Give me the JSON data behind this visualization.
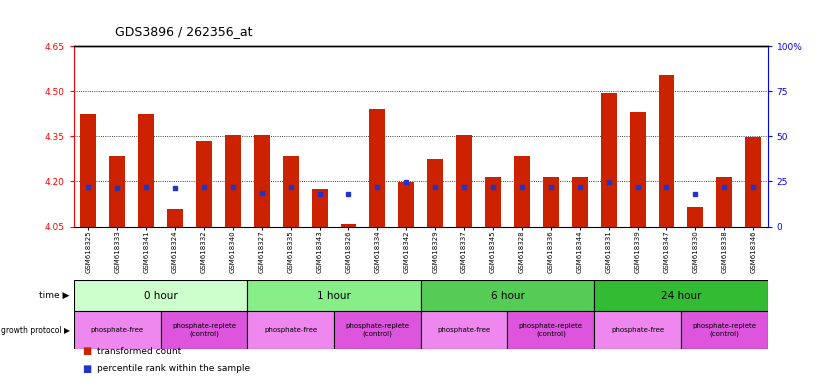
{
  "title": "GDS3896 / 262356_at",
  "samples": [
    "GSM618325",
    "GSM618333",
    "GSM618341",
    "GSM618324",
    "GSM618332",
    "GSM618340",
    "GSM618327",
    "GSM618335",
    "GSM618343",
    "GSM618326",
    "GSM618334",
    "GSM618342",
    "GSM618329",
    "GSM618337",
    "GSM618345",
    "GSM618328",
    "GSM618336",
    "GSM618344",
    "GSM618331",
    "GSM618339",
    "GSM618347",
    "GSM618330",
    "GSM618338",
    "GSM618346"
  ],
  "bar_tops": [
    4.425,
    4.285,
    4.425,
    4.108,
    4.335,
    4.355,
    4.353,
    4.285,
    4.175,
    4.06,
    4.44,
    4.198,
    4.275,
    4.355,
    4.215,
    4.285,
    4.215,
    4.215,
    4.495,
    4.43,
    4.555,
    4.115,
    4.215,
    4.348
  ],
  "blue_positions": [
    4.183,
    4.178,
    4.182,
    4.178,
    4.183,
    4.183,
    4.16,
    4.182,
    4.158,
    4.157,
    4.183,
    4.197,
    4.183,
    4.183,
    4.183,
    4.183,
    4.183,
    4.183,
    4.197,
    4.183,
    4.183,
    4.158,
    4.183,
    4.183
  ],
  "bar_color": "#cc2200",
  "blue_color": "#2233cc",
  "ymin": 4.05,
  "ymax": 4.65,
  "yticks_left": [
    4.05,
    4.2,
    4.35,
    4.5,
    4.65
  ],
  "yticks_right_pct": [
    0,
    25,
    50,
    75,
    100
  ],
  "dotted_lines": [
    4.2,
    4.35,
    4.5
  ],
  "time_groups": [
    {
      "label": "0 hour",
      "start": 0,
      "end": 6,
      "color": "#ccffcc"
    },
    {
      "label": "1 hour",
      "start": 6,
      "end": 12,
      "color": "#88ee88"
    },
    {
      "label": "6 hour",
      "start": 12,
      "end": 18,
      "color": "#55cc55"
    },
    {
      "label": "24 hour",
      "start": 18,
      "end": 24,
      "color": "#33bb33"
    }
  ],
  "protocol_groups": [
    {
      "label": "phosphate-free",
      "start": 0,
      "end": 3,
      "color": "#ee88ee"
    },
    {
      "label": "phosphate-replete\n(control)",
      "start": 3,
      "end": 6,
      "color": "#dd55dd"
    },
    {
      "label": "phosphate-free",
      "start": 6,
      "end": 9,
      "color": "#ee88ee"
    },
    {
      "label": "phosphate-replete\n(control)",
      "start": 9,
      "end": 12,
      "color": "#dd55dd"
    },
    {
      "label": "phosphate-free",
      "start": 12,
      "end": 15,
      "color": "#ee88ee"
    },
    {
      "label": "phosphate-replete\n(control)",
      "start": 15,
      "end": 18,
      "color": "#dd55dd"
    },
    {
      "label": "phosphate-free",
      "start": 18,
      "end": 21,
      "color": "#ee88ee"
    },
    {
      "label": "phosphate-replete\n(control)",
      "start": 21,
      "end": 24,
      "color": "#dd55dd"
    }
  ],
  "bar_width": 0.55,
  "plot_bg_color": "#ffffff"
}
